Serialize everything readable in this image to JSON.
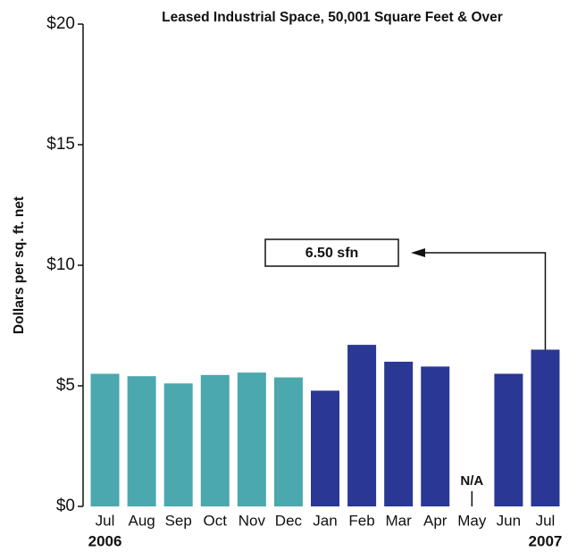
{
  "chart_data": {
    "type": "bar",
    "title": "Leased Industrial Space, 50,001  Square Feet & Over",
    "y_label": "Dollars per sq. ft. net",
    "categories": [
      "Jul",
      "Aug",
      "Sep",
      "Oct",
      "Nov",
      "Dec",
      "Jan",
      "Feb",
      "Mar",
      "Apr",
      "May",
      "Jun",
      "Jul"
    ],
    "group_labels": [
      "2006",
      null,
      null,
      null,
      null,
      null,
      null,
      null,
      null,
      null,
      null,
      null,
      "2007"
    ],
    "values": [
      5.5,
      5.4,
      5.1,
      5.45,
      5.55,
      5.35,
      4.8,
      6.7,
      6.0,
      5.8,
      null,
      5.5,
      6.5
    ],
    "value_labels": [
      null,
      null,
      null,
      null,
      null,
      null,
      null,
      null,
      null,
      null,
      "N/A",
      null,
      "6.50 sfn"
    ],
    "colors": [
      "#4aa8ae",
      "#4aa8ae",
      "#4aa8ae",
      "#4aa8ae",
      "#4aa8ae",
      "#4aa8ae",
      "#2a3794",
      "#2a3794",
      "#2a3794",
      "#2a3794",
      "#2a3794",
      "#2a3794",
      "#2a3794"
    ],
    "ylim": [
      0,
      20
    ],
    "yticks": [
      {
        "value": 0,
        "label": "$0"
      },
      {
        "value": 5,
        "label": "$5"
      },
      {
        "value": 10,
        "label": "$10"
      },
      {
        "value": 15,
        "label": "$15"
      },
      {
        "value": 20,
        "label": "$20"
      }
    ],
    "grid": false
  }
}
